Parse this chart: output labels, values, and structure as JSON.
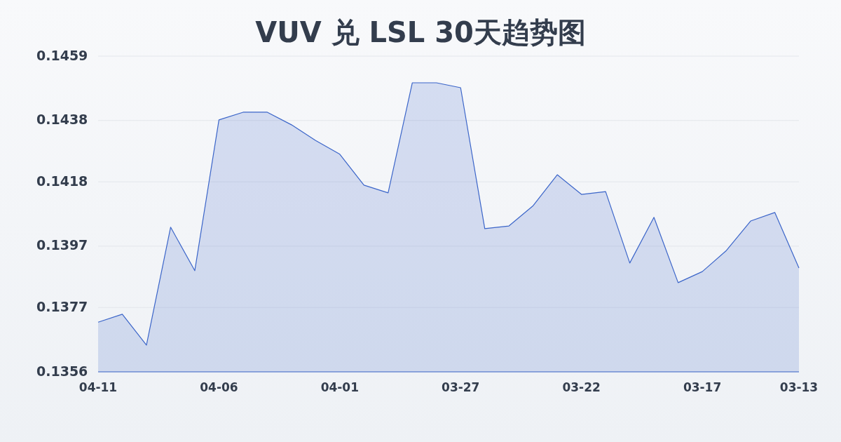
{
  "chart_data": {
    "type": "area",
    "title": "VUV 兑 LSL 30天趋势图",
    "categories": [
      "04-11",
      null,
      null,
      null,
      null,
      "04-06",
      null,
      null,
      null,
      null,
      "04-01",
      null,
      null,
      null,
      null,
      "03-27",
      null,
      null,
      null,
      null,
      "03-22",
      null,
      null,
      null,
      null,
      "03-17",
      null,
      null,
      null,
      "03-13"
    ],
    "values": [
      0.13722,
      0.13748,
      0.13647,
      0.14032,
      0.1389,
      0.14382,
      0.14407,
      0.14407,
      0.14366,
      0.14315,
      0.1427,
      0.14169,
      0.14144,
      0.14503,
      0.14503,
      0.14487,
      0.14027,
      0.14036,
      0.14102,
      0.14203,
      0.14139,
      0.14148,
      0.13915,
      0.14064,
      0.13851,
      0.13887,
      0.13956,
      0.14052,
      0.1408,
      0.13899
    ],
    "color": "#3b65c9",
    "ylim": [
      0.1356,
      0.1459
    ],
    "yticks": [
      0.1356,
      0.1377,
      0.1397,
      0.1418,
      0.1438,
      0.1459
    ],
    "grid": "y"
  }
}
